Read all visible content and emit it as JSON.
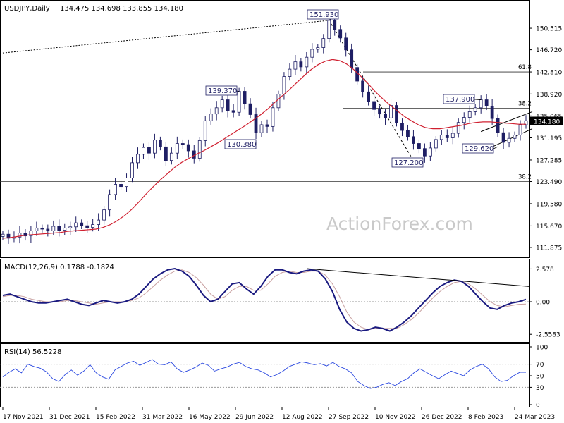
{
  "chart_data": [
    {
      "id": "price",
      "type": "candlestick",
      "title": "USDJPY,Daily",
      "ohlc_header": "134.475 134.698 133.855 134.180",
      "ylim": [
        110.5,
        154.5
      ],
      "y_ticks": [
        "150.515",
        "146.720",
        "142.810",
        "138.920",
        "135.065",
        "131.195",
        "127.285",
        "123.490",
        "119.580",
        "115.670",
        "111.875"
      ],
      "current_price": "134.180",
      "colors": {
        "bars": "#1e1e64",
        "ma": "#d02030",
        "up": "#ffffff",
        "down": "#1e1e64"
      },
      "x_labels": [
        "17 Nov 2021",
        "31 Dec 2021",
        "15 Feb 2022",
        "31 Mar 2022",
        "16 May 2022",
        "29 Jun 2022",
        "12 Aug 2022",
        "27 Sep 2022",
        "10 Nov 2022",
        "26 Dec 2022",
        "8 Feb 2023",
        "24 Mar 2023"
      ],
      "series": [
        {
          "kind": "close",
          "values": [
            114.2,
            113.5,
            113.7,
            114.4,
            113.9,
            114.8,
            115.3,
            115.1,
            114.8,
            115.6,
            114.9,
            115.3,
            115.5,
            116.2,
            115.7,
            115.4,
            115.9,
            116.7,
            118.5,
            121.2,
            123.0,
            122.6,
            124.1,
            126.8,
            128.3,
            129.5,
            128.5,
            130.8,
            129.6,
            127.2,
            128.5,
            130.2,
            130.0,
            128.9,
            127.6,
            130.7,
            134.2,
            135.4,
            136.5,
            137.9,
            136.0,
            135.7,
            139.4,
            137.2,
            135.3,
            132.1,
            133.5,
            133.2,
            136.5,
            138.9,
            142.0,
            143.3,
            144.6,
            143.7,
            145.4,
            146.8,
            147.1,
            148.7,
            151.9,
            150.3,
            148.8,
            146.7,
            143.6,
            141.2,
            139.3,
            137.6,
            136.2,
            135.4,
            134.7,
            136.9,
            133.8,
            132.5,
            131.4,
            130.2,
            129.3,
            128.0,
            129.4,
            130.9,
            131.7,
            131.2,
            132.0,
            133.9,
            134.8,
            135.8,
            136.5,
            137.9,
            136.8,
            134.6,
            132.1,
            130.4,
            131.1,
            131.7,
            133.5,
            134.2
          ]
        },
        {
          "kind": "ma",
          "name": "",
          "values": [
            113.5,
            113.6,
            113.8,
            114.0,
            114.1,
            114.2,
            114.3,
            114.4,
            114.5,
            114.7,
            114.8,
            114.9,
            115.0,
            115.1,
            115.4,
            115.9,
            116.6,
            117.5,
            118.6,
            119.9,
            121.3,
            122.6,
            123.8,
            124.9,
            126.0,
            126.9,
            127.6,
            128.3,
            128.9,
            129.6,
            130.3,
            131.1,
            131.9,
            132.7,
            133.5,
            134.4,
            135.3,
            136.3,
            137.5,
            138.6,
            139.7,
            140.9,
            142.1,
            143.2,
            144.1,
            144.7,
            145.0,
            144.8,
            144.2,
            143.2,
            142.0,
            140.7,
            139.3,
            138.1,
            137.0,
            136.0,
            135.0,
            134.2,
            133.5,
            133.0,
            132.8,
            132.8,
            133.0,
            133.2,
            133.4,
            133.7,
            133.9,
            134.0,
            134.0,
            133.9,
            133.8,
            133.7,
            133.6,
            133.6
          ]
        }
      ],
      "annotations": [
        {
          "text": "151.930",
          "value": 151.93,
          "index": 58
        },
        {
          "text": "139.370",
          "value": 139.37,
          "index": 42
        },
        {
          "text": "130.380",
          "value": 130.38,
          "index": 45
        },
        {
          "text": "127.200",
          "value": 127.2,
          "index": 73
        },
        {
          "text": "137.900",
          "value": 137.9,
          "index": 85
        },
        {
          "text": "129.620",
          "value": 129.62,
          "index": 88
        }
      ],
      "fib_levels": [
        {
          "label": "61.8",
          "value": 142.81
        },
        {
          "label": "38.2",
          "value": 136.4
        },
        {
          "label": "38.2",
          "value": 123.49
        }
      ],
      "watermark": "ActionForex.com"
    },
    {
      "id": "macd",
      "type": "line",
      "title": "MACD(12,26,9) 0.1788 -0.1824",
      "ylim": [
        -3.1,
        3.1
      ],
      "y_ticks": [
        "2.578",
        "0.00",
        "-2.5583"
      ],
      "colors": {
        "macd": "#1a1a80",
        "signal": "#c8a0a0"
      },
      "series": [
        {
          "name": "",
          "values": [
            0.5,
            0.6,
            0.4,
            0.2,
            0.0,
            -0.1,
            -0.1,
            0.0,
            0.1,
            0.2,
            0.0,
            -0.2,
            -0.3,
            -0.1,
            0.1,
            0.0,
            -0.1,
            0.0,
            0.2,
            0.6,
            1.2,
            1.8,
            2.2,
            2.5,
            2.6,
            2.4,
            2.0,
            1.3,
            0.5,
            0.0,
            0.2,
            0.8,
            1.4,
            1.5,
            1.0,
            0.6,
            1.2,
            2.0,
            2.5,
            2.5,
            2.3,
            2.2,
            2.4,
            2.5,
            2.4,
            1.8,
            0.8,
            -0.6,
            -1.6,
            -2.1,
            -2.3,
            -2.2,
            -2.0,
            -2.1,
            -2.3,
            -2.0,
            -1.6,
            -1.1,
            -0.5,
            0.1,
            0.7,
            1.2,
            1.5,
            1.7,
            1.6,
            1.2,
            0.6,
            0.0,
            -0.5,
            -0.6,
            -0.3,
            -0.1,
            0.0,
            0.18
          ]
        },
        {
          "name": "",
          "values": [
            0.4,
            0.5,
            0.5,
            0.4,
            0.2,
            0.1,
            0.0,
            0.0,
            0.0,
            0.1,
            0.1,
            0.0,
            -0.1,
            -0.2,
            -0.1,
            0.0,
            0.0,
            0.0,
            0.1,
            0.3,
            0.7,
            1.2,
            1.7,
            2.1,
            2.4,
            2.5,
            2.3,
            1.9,
            1.3,
            0.6,
            0.2,
            0.4,
            0.9,
            1.2,
            1.2,
            0.9,
            0.9,
            1.4,
            2.0,
            2.3,
            2.4,
            2.3,
            2.3,
            2.4,
            2.4,
            2.1,
            1.4,
            0.4,
            -0.8,
            -1.6,
            -2.0,
            -2.2,
            -2.1,
            -2.1,
            -2.1,
            -2.1,
            -1.8,
            -1.4,
            -0.9,
            -0.3,
            0.3,
            0.8,
            1.2,
            1.5,
            1.6,
            1.4,
            1.0,
            0.5,
            0.0,
            -0.3,
            -0.4,
            -0.3,
            -0.2,
            -0.18
          ]
        }
      ]
    },
    {
      "id": "rsi",
      "type": "line",
      "title": "RSI(14) 56.5228",
      "ylim": [
        0,
        100
      ],
      "y_ticks": [
        "100",
        "70",
        "50",
        "30",
        "0"
      ],
      "levels": [
        70,
        30
      ],
      "colors": {
        "line": "#2a48e0"
      },
      "series": [
        {
          "name": "",
          "values": [
            48,
            56,
            62,
            55,
            70,
            66,
            63,
            57,
            45,
            40,
            52,
            60,
            51,
            58,
            69,
            55,
            48,
            44,
            60,
            66,
            72,
            75,
            68,
            73,
            78,
            70,
            69,
            74,
            62,
            56,
            60,
            65,
            72,
            68,
            58,
            62,
            65,
            70,
            73,
            66,
            62,
            60,
            55,
            48,
            52,
            58,
            66,
            70,
            74,
            72,
            69,
            71,
            67,
            73,
            66,
            62,
            55,
            40,
            33,
            28,
            30,
            35,
            38,
            33,
            40,
            45,
            55,
            62,
            56,
            50,
            45,
            52,
            58,
            54,
            50,
            60,
            66,
            70,
            62,
            48,
            40,
            42,
            50,
            56,
            56
          ]
        }
      ]
    }
  ]
}
